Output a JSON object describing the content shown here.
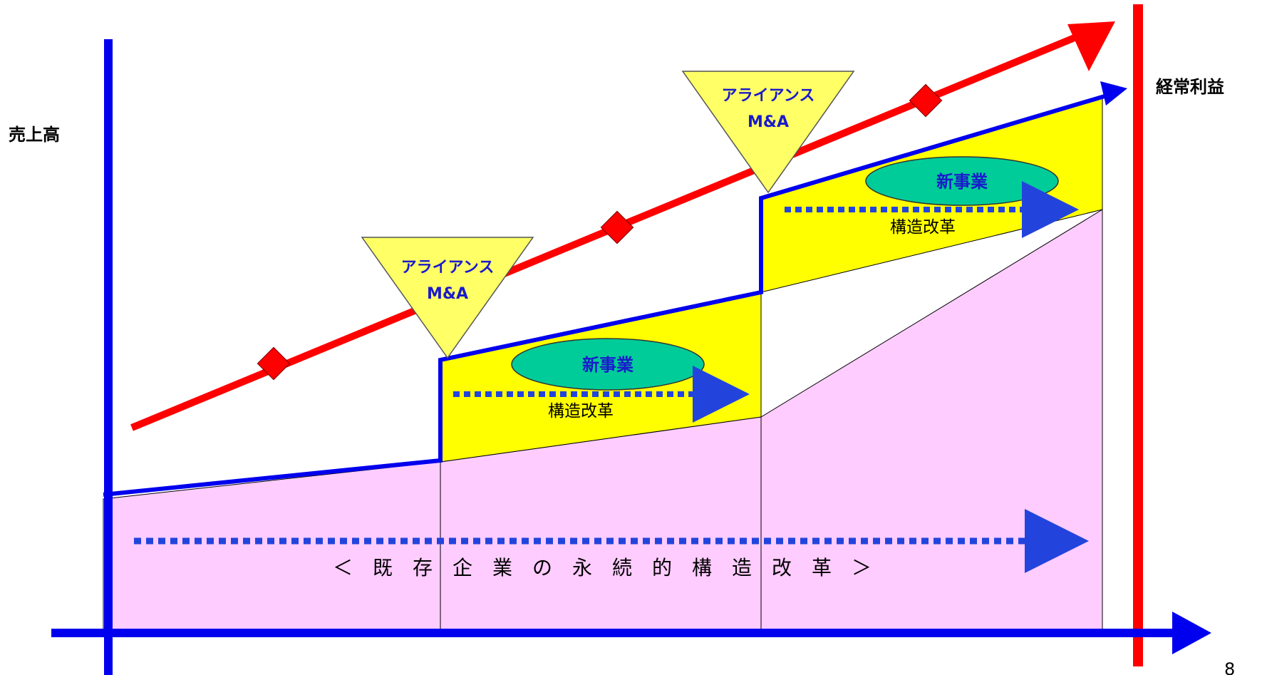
{
  "labels": {
    "left_axis": "売上高",
    "right_axis": "経常利益",
    "page_number": "8"
  },
  "triangles": [
    {
      "line1": "アライアンス",
      "line2": "M&A"
    },
    {
      "line1": "アライアンス",
      "line2": "M&A"
    }
  ],
  "new_business": [
    "新事業",
    "新事業"
  ],
  "structural_reform": [
    "構造改革",
    "構造改革"
  ],
  "bottom_caption": "＜　既　存　企　業　の　永　続　的　構　造　改　革　＞",
  "colors": {
    "sales_line": "#0000ee",
    "profit_line": "#ff0000",
    "base_area": "#ffccff",
    "growth_area": "#ffff00",
    "triangle_fill": "#ffff66",
    "ellipse_fill": "#00cc99",
    "dotted_arrow": "#2244dd",
    "diamond": "#ff0000"
  },
  "icons": {
    "marker": "diamond",
    "arrow_head": "triangle-arrowhead"
  }
}
